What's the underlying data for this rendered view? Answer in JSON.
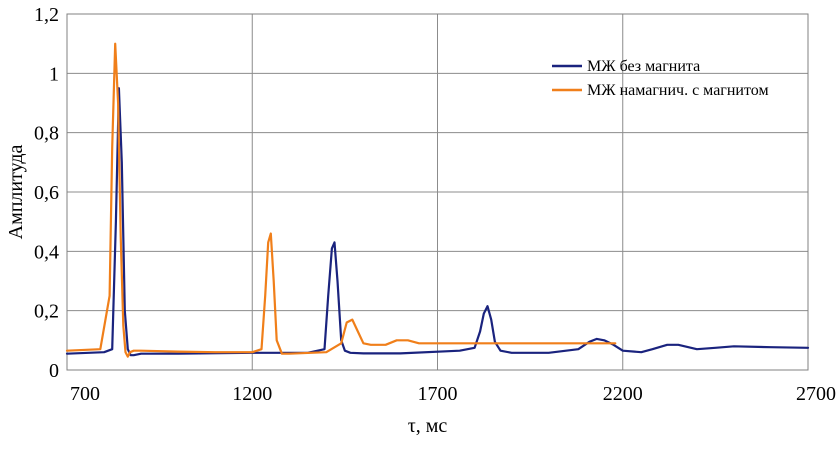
{
  "chart_data": {
    "type": "line",
    "title": "",
    "xlabel": "τ, мс",
    "ylabel": "Амплитуда",
    "xlim": [
      700,
      2700
    ],
    "ylim": [
      0,
      1.2
    ],
    "x_ticks": [
      700,
      1200,
      1700,
      2200,
      2700
    ],
    "x_tick_labels": [
      "700",
      "1200",
      "1700",
      "2200",
      "2700"
    ],
    "y_ticks": [
      0,
      0.2,
      0.4,
      0.6,
      0.8,
      1.0,
      1.2
    ],
    "y_tick_labels": [
      "0",
      "0,2",
      "0,4",
      "0,6",
      "0,8",
      "1",
      "1,2"
    ],
    "grid": true,
    "legend_position": "top-right",
    "series": [
      {
        "name": "МЖ без магнита",
        "color": "#1a237e",
        "x": [
          700,
          800,
          822,
          832,
          840,
          848,
          856,
          864,
          872,
          880,
          900,
          1000,
          1200,
          1350,
          1395,
          1405,
          1415,
          1422,
          1430,
          1440,
          1450,
          1465,
          1500,
          1600,
          1760,
          1800,
          1815,
          1825,
          1835,
          1845,
          1855,
          1870,
          1900,
          2000,
          2080,
          2110,
          2130,
          2150,
          2175,
          2200,
          2250,
          2280,
          2320,
          2350,
          2400,
          2450,
          2500,
          2600,
          2700
        ],
        "y": [
          0.055,
          0.06,
          0.07,
          0.5,
          0.95,
          0.7,
          0.2,
          0.07,
          0.05,
          0.05,
          0.055,
          0.055,
          0.058,
          0.058,
          0.07,
          0.25,
          0.41,
          0.43,
          0.3,
          0.1,
          0.065,
          0.058,
          0.056,
          0.056,
          0.065,
          0.075,
          0.13,
          0.19,
          0.215,
          0.17,
          0.095,
          0.065,
          0.058,
          0.058,
          0.07,
          0.095,
          0.105,
          0.1,
          0.085,
          0.065,
          0.06,
          0.07,
          0.085,
          0.085,
          0.07,
          0.075,
          0.08,
          0.077,
          0.075
        ]
      },
      {
        "name": "МЖ намагнич. с магнитом",
        "color": "#f07f1a",
        "x": [
          700,
          790,
          815,
          822,
          830,
          838,
          845,
          852,
          858,
          864,
          870,
          880,
          900,
          1000,
          1100,
          1200,
          1225,
          1235,
          1243,
          1250,
          1258,
          1266,
          1280,
          1300,
          1400,
          1440,
          1455,
          1470,
          1485,
          1500,
          1520,
          1560,
          1590,
          1620,
          1650,
          1700,
          1800,
          1900,
          2000,
          2100,
          2150,
          2180
        ],
        "y": [
          0.065,
          0.07,
          0.25,
          0.75,
          1.1,
          0.9,
          0.45,
          0.15,
          0.06,
          0.045,
          0.06,
          0.065,
          0.065,
          0.062,
          0.06,
          0.06,
          0.07,
          0.25,
          0.43,
          0.46,
          0.3,
          0.1,
          0.055,
          0.055,
          0.06,
          0.09,
          0.16,
          0.17,
          0.13,
          0.09,
          0.085,
          0.085,
          0.1,
          0.1,
          0.09,
          0.09,
          0.09,
          0.09,
          0.09,
          0.09,
          0.09,
          0.09
        ]
      }
    ]
  }
}
